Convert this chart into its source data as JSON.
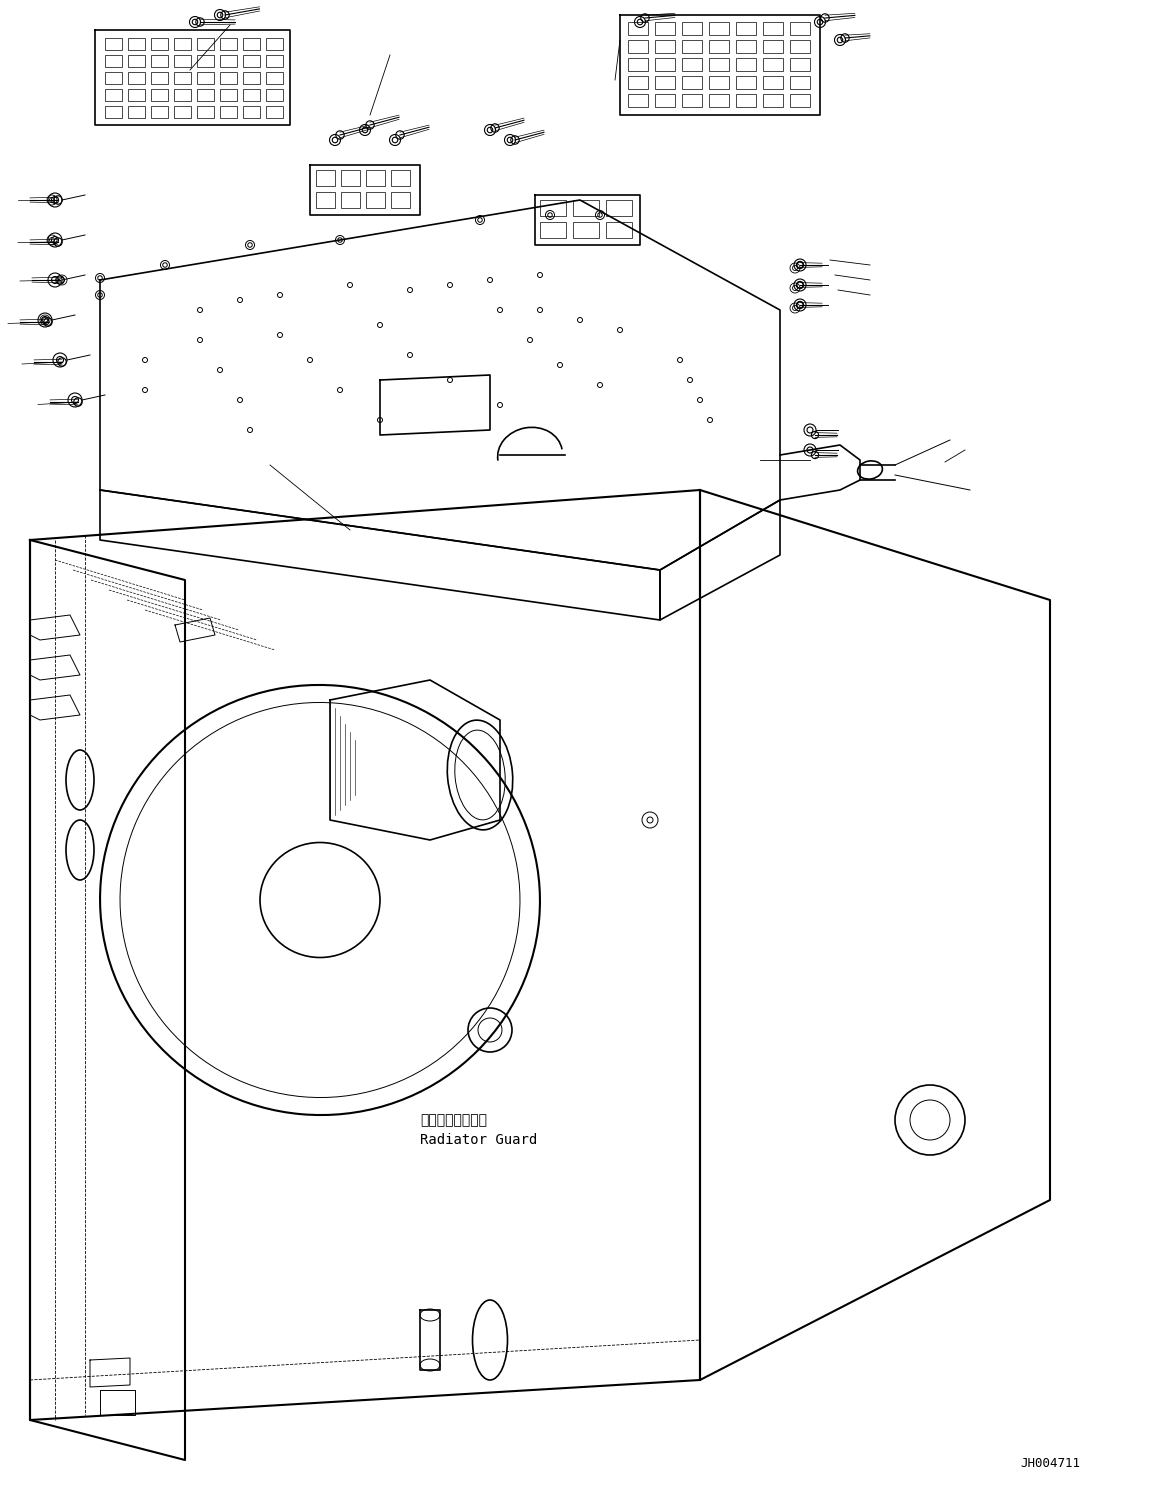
{
  "figure_id": "JH004711",
  "label_radiator_guard_jp": "ラジエータガード",
  "label_radiator_guard_en": "Radiator Guard",
  "bg_color": "#ffffff",
  "line_color": "#000000",
  "figsize": [
    11.49,
    14.88
  ],
  "dpi": 100
}
